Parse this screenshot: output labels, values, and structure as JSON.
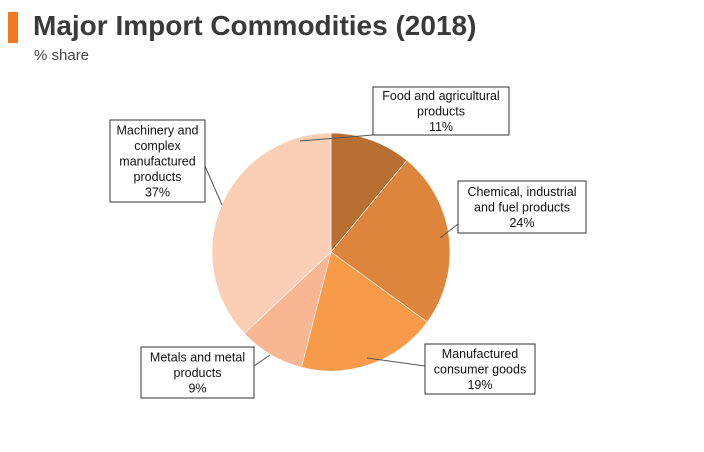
{
  "header": {
    "title": "Major Import Commodities (2018)",
    "subtitle": "% share"
  },
  "colors": {
    "accent": "#f07a22",
    "slices": [
      "#b86f33",
      "#dd853c",
      "#f79a4a",
      "#f8b692",
      "#fbcfb6"
    ]
  },
  "chart_data": {
    "type": "pie",
    "title": "Major Import Commodities (2018)",
    "subtitle": "% share",
    "unit": "%",
    "slices": [
      {
        "label_lines": [
          "Food and agricultural",
          "products"
        ],
        "value": 11,
        "value_label": "11%"
      },
      {
        "label_lines": [
          "Chemical, industrial",
          "and fuel products"
        ],
        "value": 24,
        "value_label": "24%"
      },
      {
        "label_lines": [
          "Manufactured",
          "consumer goods"
        ],
        "value": 19,
        "value_label": "19%"
      },
      {
        "label_lines": [
          "Metals and metal",
          "products"
        ],
        "value": 9,
        "value_label": "9%"
      },
      {
        "label_lines": [
          "Machinery and",
          "complex",
          "manufactured",
          "products"
        ],
        "value": 37,
        "value_label": "37%"
      }
    ]
  }
}
